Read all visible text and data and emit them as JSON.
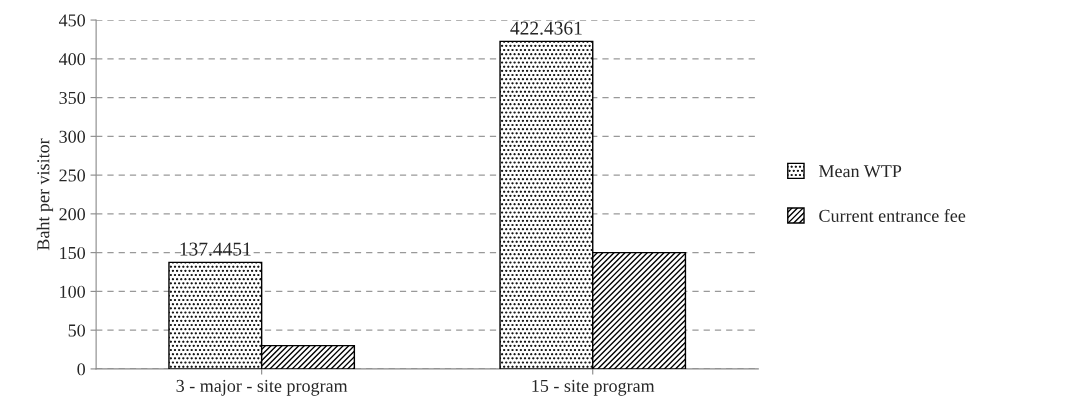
{
  "chart_data": {
    "type": "bar",
    "ylabel": "Baht per visitor",
    "categories": [
      "3 - major - site program",
      "15 - site program"
    ],
    "series": [
      {
        "name": "Mean WTP",
        "color": "#000000",
        "values": [
          137.4451,
          422.4361
        ],
        "value_labels": [
          "137.4451",
          "422.4361"
        ]
      },
      {
        "name": "Current entrance fee",
        "color": "#000000",
        "values": [
          30,
          150
        ]
      }
    ],
    "ylim": [
      0,
      450
    ],
    "yticks": [
      0,
      50,
      100,
      150,
      200,
      250,
      300,
      350,
      400,
      450
    ],
    "grid": "y",
    "legend": "right"
  }
}
